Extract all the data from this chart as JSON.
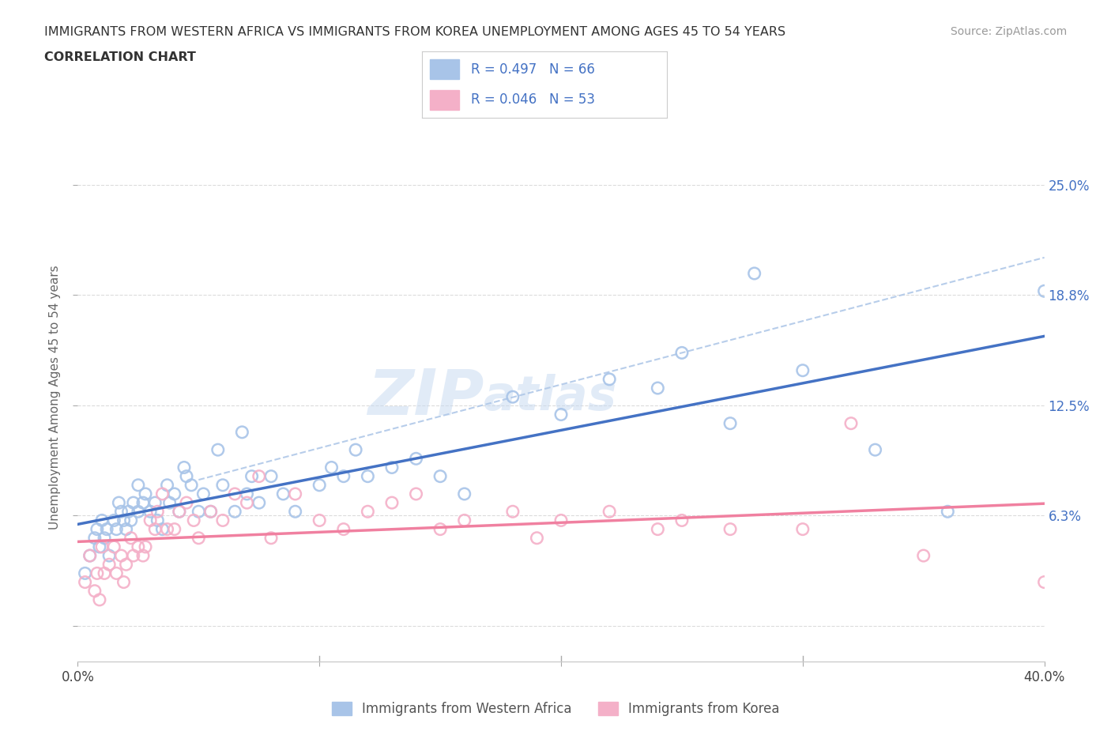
{
  "title_line1": "IMMIGRANTS FROM WESTERN AFRICA VS IMMIGRANTS FROM KOREA UNEMPLOYMENT AMONG AGES 45 TO 54 YEARS",
  "title_line2": "CORRELATION CHART",
  "source": "Source: ZipAtlas.com",
  "ylabel": "Unemployment Among Ages 45 to 54 years",
  "xlim": [
    0.0,
    0.4
  ],
  "ylim": [
    -0.02,
    0.28
  ],
  "ytick_positions": [
    0.0,
    0.063,
    0.125,
    0.188,
    0.25
  ],
  "ytick_labels": [
    "",
    "6.3%",
    "12.5%",
    "18.8%",
    "25.0%"
  ],
  "series1_label": "Immigrants from Western Africa",
  "series2_label": "Immigrants from Korea",
  "series1_color": "#a8c4e8",
  "series2_color": "#f4b0c8",
  "series1_R": 0.497,
  "series1_N": 66,
  "series2_R": 0.046,
  "series2_N": 53,
  "watermark_text": "ZIP",
  "watermark_text2": "atlas",
  "background_color": "#ffffff",
  "series1_x": [
    0.003,
    0.005,
    0.007,
    0.008,
    0.009,
    0.01,
    0.011,
    0.012,
    0.013,
    0.015,
    0.016,
    0.017,
    0.018,
    0.019,
    0.02,
    0.021,
    0.022,
    0.023,
    0.025,
    0.025,
    0.027,
    0.028,
    0.03,
    0.032,
    0.033,
    0.035,
    0.037,
    0.038,
    0.04,
    0.042,
    0.044,
    0.045,
    0.047,
    0.05,
    0.052,
    0.055,
    0.058,
    0.06,
    0.065,
    0.068,
    0.07,
    0.072,
    0.075,
    0.08,
    0.085,
    0.09,
    0.1,
    0.105,
    0.11,
    0.115,
    0.12,
    0.13,
    0.14,
    0.15,
    0.16,
    0.18,
    0.2,
    0.22,
    0.24,
    0.25,
    0.27,
    0.28,
    0.3,
    0.33,
    0.36,
    0.4
  ],
  "series1_y": [
    0.03,
    0.04,
    0.05,
    0.055,
    0.045,
    0.06,
    0.05,
    0.055,
    0.04,
    0.06,
    0.055,
    0.07,
    0.065,
    0.06,
    0.055,
    0.065,
    0.06,
    0.07,
    0.065,
    0.08,
    0.07,
    0.075,
    0.065,
    0.07,
    0.06,
    0.055,
    0.08,
    0.07,
    0.075,
    0.065,
    0.09,
    0.085,
    0.08,
    0.065,
    0.075,
    0.065,
    0.1,
    0.08,
    0.065,
    0.11,
    0.075,
    0.085,
    0.07,
    0.085,
    0.075,
    0.065,
    0.08,
    0.09,
    0.085,
    0.1,
    0.085,
    0.09,
    0.095,
    0.085,
    0.075,
    0.13,
    0.12,
    0.14,
    0.135,
    0.155,
    0.115,
    0.2,
    0.145,
    0.1,
    0.065,
    0.19
  ],
  "series2_x": [
    0.003,
    0.005,
    0.007,
    0.008,
    0.009,
    0.01,
    0.011,
    0.013,
    0.015,
    0.016,
    0.018,
    0.019,
    0.02,
    0.022,
    0.023,
    0.025,
    0.027,
    0.028,
    0.03,
    0.032,
    0.033,
    0.035,
    0.037,
    0.04,
    0.042,
    0.045,
    0.048,
    0.05,
    0.055,
    0.06,
    0.065,
    0.07,
    0.075,
    0.08,
    0.09,
    0.1,
    0.11,
    0.12,
    0.13,
    0.14,
    0.15,
    0.16,
    0.18,
    0.19,
    0.2,
    0.22,
    0.24,
    0.25,
    0.27,
    0.3,
    0.32,
    0.35,
    0.4
  ],
  "series2_y": [
    0.025,
    0.04,
    0.02,
    0.03,
    0.015,
    0.045,
    0.03,
    0.035,
    0.045,
    0.03,
    0.04,
    0.025,
    0.035,
    0.05,
    0.04,
    0.045,
    0.04,
    0.045,
    0.06,
    0.055,
    0.065,
    0.075,
    0.055,
    0.055,
    0.065,
    0.07,
    0.06,
    0.05,
    0.065,
    0.06,
    0.075,
    0.07,
    0.085,
    0.05,
    0.075,
    0.06,
    0.055,
    0.065,
    0.07,
    0.075,
    0.055,
    0.06,
    0.065,
    0.05,
    0.06,
    0.065,
    0.055,
    0.06,
    0.055,
    0.055,
    0.115,
    0.04,
    0.025
  ],
  "grid_color": "#cccccc",
  "reg_color1": "#4472c4",
  "reg_color2": "#f080a0",
  "dash_color": "#b0c8e8",
  "legend_box_color": "#e8e8e8",
  "label_color": "#4472c4",
  "axis_label_color": "#666666"
}
